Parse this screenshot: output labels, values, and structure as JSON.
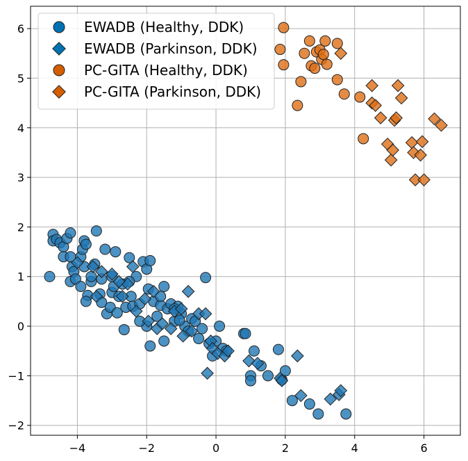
{
  "chart_data": {
    "type": "scatter",
    "title": "",
    "xlabel": "",
    "ylabel": "",
    "xlim": [
      -5.35,
      7.05
    ],
    "ylim": [
      -2.2,
      6.45
    ],
    "xticks": [
      -4,
      -2,
      0,
      2,
      4,
      6
    ],
    "yticks": [
      -2,
      -1,
      0,
      1,
      2,
      3,
      4,
      5,
      6
    ],
    "xtick_labels": [
      "−4",
      "−2",
      "0",
      "2",
      "4",
      "6"
    ],
    "ytick_labels": [
      "−2",
      "−1",
      "0",
      "1",
      "2",
      "3",
      "4",
      "5",
      "6"
    ],
    "grid": true,
    "legend_position": "top-left",
    "series": [
      {
        "name": "EWADB (Healthy, DDK)",
        "marker": "circle",
        "color": "#1f77b4",
        "legend_color": "#0072B2",
        "points": [
          [
            -4.8,
            1.0
          ],
          [
            -4.7,
            1.85
          ],
          [
            -4.7,
            1.72
          ],
          [
            -4.6,
            1.75
          ],
          [
            -4.5,
            1.68
          ],
          [
            -4.4,
            1.6
          ],
          [
            -4.4,
            1.4
          ],
          [
            -4.3,
            1.77
          ],
          [
            -4.2,
            1.88
          ],
          [
            -4.2,
            1.4
          ],
          [
            -4.15,
            1.2
          ],
          [
            -4.1,
            1.1
          ],
          [
            -4.2,
            0.9
          ],
          [
            -4.05,
            0.95
          ],
          [
            -3.9,
            1.4
          ],
          [
            -3.85,
            1.55
          ],
          [
            -3.8,
            1.72
          ],
          [
            -3.75,
            1.65
          ],
          [
            -3.8,
            1.2
          ],
          [
            -3.7,
            0.62
          ],
          [
            -3.75,
            0.5
          ],
          [
            -3.6,
            0.9
          ],
          [
            -3.5,
            1.25
          ],
          [
            -3.45,
            1.92
          ],
          [
            -3.35,
            0.65
          ],
          [
            -3.3,
            0.48
          ],
          [
            -3.3,
            0.95
          ],
          [
            -3.2,
            1.55
          ],
          [
            -3.15,
            0.25
          ],
          [
            -3.05,
            0.38
          ],
          [
            -3.0,
            0.68
          ],
          [
            -2.95,
            0.8
          ],
          [
            -2.9,
            1.5
          ],
          [
            -2.85,
            0.27
          ],
          [
            -2.8,
            0.6
          ],
          [
            -2.7,
            0.85
          ],
          [
            -2.65,
            -0.07
          ],
          [
            -2.6,
            0.38
          ],
          [
            -2.5,
            1.38
          ],
          [
            -2.45,
            0.6
          ],
          [
            -2.4,
            0.4
          ],
          [
            -2.3,
            1.0
          ],
          [
            -2.2,
            0.45
          ],
          [
            -2.1,
            1.3
          ],
          [
            -2.0,
            1.15
          ],
          [
            -1.95,
            0.75
          ],
          [
            -1.9,
            1.32
          ],
          [
            -1.8,
            0.5
          ],
          [
            -1.7,
            0.2
          ],
          [
            -1.6,
            0.42
          ],
          [
            -1.5,
            0.8
          ],
          [
            -1.4,
            0.35
          ],
          [
            -1.3,
            0.45
          ],
          [
            -1.2,
            0.1
          ],
          [
            -1.1,
            0.4
          ],
          [
            -1.0,
            0.25
          ],
          [
            -0.9,
            0.0
          ],
          [
            -0.8,
            -0.1
          ],
          [
            -0.7,
            0.15
          ],
          [
            -0.6,
            0.1
          ],
          [
            -0.5,
            -0.25
          ],
          [
            -0.4,
            -0.05
          ],
          [
            -0.3,
            0.98
          ],
          [
            -0.2,
            -0.35
          ],
          [
            -0.1,
            -0.6
          ],
          [
            0.0,
            -0.3
          ],
          [
            0.1,
            0.0
          ],
          [
            0.2,
            -0.45
          ],
          [
            0.3,
            -0.5
          ],
          [
            0.8,
            -0.15
          ],
          [
            0.85,
            -0.15
          ],
          [
            1.0,
            -1.0
          ],
          [
            1.0,
            -1.1
          ],
          [
            1.1,
            -0.5
          ],
          [
            1.3,
            -0.8
          ],
          [
            1.5,
            -1.0
          ],
          [
            1.8,
            -0.47
          ],
          [
            1.9,
            -1.08
          ],
          [
            2.0,
            -0.9
          ],
          [
            2.2,
            -1.5
          ],
          [
            2.7,
            -1.57
          ],
          [
            2.95,
            -1.77
          ],
          [
            3.75,
            -1.77
          ],
          [
            -2.0,
            0.0
          ],
          [
            -1.5,
            -0.3
          ],
          [
            -1.05,
            0.12
          ],
          [
            -1.2,
            0.35
          ],
          [
            -3.0,
            1.0
          ],
          [
            -2.5,
            0.9
          ],
          [
            -3.6,
            1.0
          ],
          [
            -3.9,
            0.8
          ],
          [
            -2.2,
            0.1
          ],
          [
            -1.9,
            -0.4
          ],
          [
            -1.6,
            0.6
          ]
        ]
      },
      {
        "name": "EWADB (Parkinson, DDK)",
        "marker": "diamond",
        "color": "#1f77b4",
        "legend_color": "#0072B2",
        "points": [
          [
            -4.0,
            1.28
          ],
          [
            -3.55,
            1.2
          ],
          [
            -3.45,
            0.6
          ],
          [
            -3.0,
            1.05
          ],
          [
            -2.7,
            0.6
          ],
          [
            -2.55,
            0.85
          ],
          [
            -2.3,
            0.3
          ],
          [
            -2.05,
            0.55
          ],
          [
            -1.8,
            0.7
          ],
          [
            -1.7,
            -0.05
          ],
          [
            -1.55,
            0.05
          ],
          [
            -1.3,
            -0.05
          ],
          [
            -1.2,
            0.3
          ],
          [
            -1.0,
            0.35
          ],
          [
            -0.8,
            0.7
          ],
          [
            -0.7,
            -0.1
          ],
          [
            -0.5,
            0.25
          ],
          [
            -0.3,
            0.25
          ],
          [
            -0.25,
            -0.95
          ],
          [
            -0.15,
            -0.3
          ],
          [
            -0.1,
            -0.45
          ],
          [
            0.05,
            -0.55
          ],
          [
            0.25,
            -0.6
          ],
          [
            0.35,
            -0.5
          ],
          [
            0.95,
            -0.7
          ],
          [
            1.2,
            -0.75
          ],
          [
            1.85,
            -1.05
          ],
          [
            1.9,
            -1.1
          ],
          [
            2.35,
            -0.6
          ],
          [
            2.45,
            -1.4
          ],
          [
            3.3,
            -1.47
          ],
          [
            3.55,
            -1.38
          ],
          [
            3.6,
            -1.3
          ],
          [
            -2.8,
            0.9
          ],
          [
            -1.95,
            0.1
          ],
          [
            -0.95,
            -0.2
          ],
          [
            -3.3,
            1.1
          ],
          [
            -2.4,
            1.2
          ]
        ]
      },
      {
        "name": "PC-GITA (Healthy, DDK)",
        "marker": "circle",
        "color": "#dd6e15",
        "legend_color": "#D55E00",
        "points": [
          [
            1.85,
            5.58
          ],
          [
            1.95,
            6.02
          ],
          [
            1.95,
            5.27
          ],
          [
            2.35,
            4.45
          ],
          [
            2.45,
            4.93
          ],
          [
            2.55,
            5.5
          ],
          [
            2.7,
            5.75
          ],
          [
            2.75,
            5.25
          ],
          [
            2.85,
            5.2
          ],
          [
            2.9,
            5.53
          ],
          [
            3.0,
            5.57
          ],
          [
            3.05,
            5.38
          ],
          [
            3.1,
            5.48
          ],
          [
            3.15,
            5.75
          ],
          [
            3.2,
            5.28
          ],
          [
            3.5,
            5.7
          ],
          [
            3.5,
            4.97
          ],
          [
            3.7,
            4.68
          ],
          [
            4.15,
            4.62
          ],
          [
            4.25,
            3.78
          ]
        ]
      },
      {
        "name": "PC-GITA (Parkinson, DDK)",
        "marker": "diamond",
        "color": "#dd6e15",
        "legend_color": "#D55E00",
        "points": [
          [
            3.6,
            5.5
          ],
          [
            4.5,
            4.85
          ],
          [
            4.5,
            4.5
          ],
          [
            4.6,
            4.45
          ],
          [
            4.75,
            4.2
          ],
          [
            4.95,
            3.67
          ],
          [
            5.05,
            3.35
          ],
          [
            5.1,
            3.55
          ],
          [
            5.15,
            4.15
          ],
          [
            5.2,
            4.2
          ],
          [
            5.25,
            4.85
          ],
          [
            5.35,
            4.6
          ],
          [
            5.65,
            3.7
          ],
          [
            5.7,
            3.5
          ],
          [
            5.75,
            2.95
          ],
          [
            5.9,
            3.45
          ],
          [
            5.95,
            3.72
          ],
          [
            6.0,
            2.95
          ],
          [
            6.3,
            4.18
          ],
          [
            6.5,
            4.05
          ]
        ]
      }
    ]
  }
}
